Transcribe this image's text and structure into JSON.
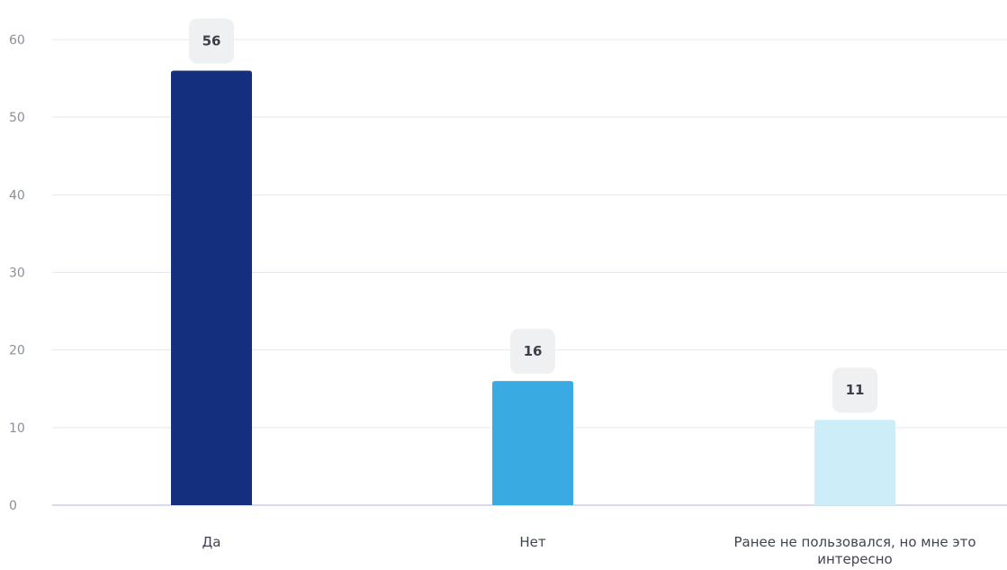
{
  "chart_data": {
    "type": "bar",
    "categories": [
      "Да",
      "Нет",
      "Ранее не пользовался, но мне это интересно"
    ],
    "values": [
      56,
      16,
      11
    ],
    "ylim": [
      0,
      60
    ],
    "yticks": [
      0,
      10,
      20,
      30,
      40,
      50,
      60
    ],
    "grid": true,
    "legend": "none",
    "data_labels": true,
    "colors": [
      "#132f7e",
      "#3aaae3",
      "#cdeef8"
    ],
    "label_bubble_color": "#eef0f2",
    "gridline_color": "#e6e8ef",
    "axis_line_color": "#d9dbe8"
  }
}
